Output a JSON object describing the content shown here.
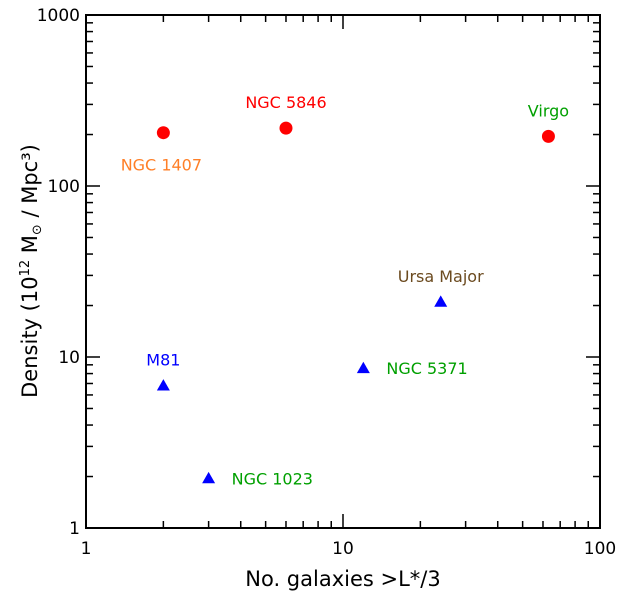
{
  "chart_data": {
    "type": "scatter",
    "xlabel": "No. galaxies >L*/3",
    "ylabel_prefix": "Density (10",
    "ylabel_exp": "12",
    "ylabel_mid": " M",
    "ylabel_suffix": " / Mpc³)",
    "xscale": "log",
    "yscale": "log",
    "xlim": [
      1,
      100
    ],
    "ylim": [
      1,
      1000
    ],
    "grid": false,
    "x_ticks": [
      {
        "value": 1,
        "label": "1"
      },
      {
        "value": 10,
        "label": "10"
      },
      {
        "value": 100,
        "label": "100"
      }
    ],
    "y_ticks": [
      {
        "value": 1,
        "label": "1"
      },
      {
        "value": 10,
        "label": "10"
      },
      {
        "value": 100,
        "label": "100"
      },
      {
        "value": 1000,
        "label": "1000"
      }
    ],
    "points": [
      {
        "label": "NGC 1407",
        "x": 2,
        "y": 205,
        "marker": "circle",
        "marker_color": "#ff0000",
        "label_color": "#ff7f27",
        "label_pos": "below"
      },
      {
        "label": "NGC 5846",
        "x": 6,
        "y": 218,
        "marker": "circle",
        "marker_color": "#ff0000",
        "label_color": "#ff0000",
        "label_pos": "above"
      },
      {
        "label": "Virgo",
        "x": 63,
        "y": 195,
        "marker": "circle",
        "marker_color": "#ff0000",
        "label_color": "#00a000",
        "label_pos": "above"
      },
      {
        "label": "Ursa Major",
        "x": 24,
        "y": 21,
        "marker": "triangle",
        "marker_color": "#0000ff",
        "label_color": "#6b4a1f",
        "label_pos": "above"
      },
      {
        "label": "M81",
        "x": 2,
        "y": 6.8,
        "marker": "triangle",
        "marker_color": "#0000ff",
        "label_color": "#0000ff",
        "label_pos": "above"
      },
      {
        "label": "NGC 5371",
        "x": 12,
        "y": 8.6,
        "marker": "triangle",
        "marker_color": "#0000ff",
        "label_color": "#00a000",
        "label_pos": "right"
      },
      {
        "label": "NGC 1023",
        "x": 3,
        "y": 1.95,
        "marker": "triangle",
        "marker_color": "#0000ff",
        "label_color": "#00a000",
        "label_pos": "right"
      }
    ]
  }
}
